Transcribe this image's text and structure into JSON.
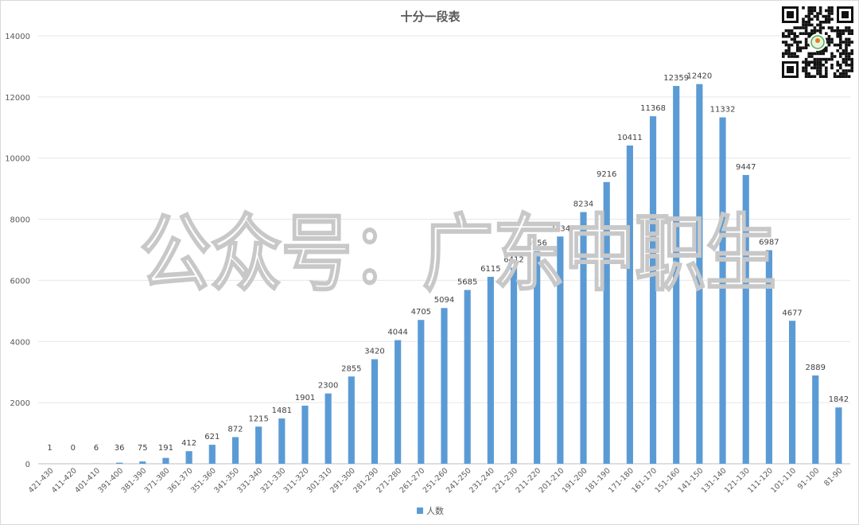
{
  "chart_data": {
    "type": "bar",
    "title": "十分一段表",
    "xlabel": "",
    "ylabel": "",
    "ylim": [
      0,
      14000
    ],
    "yticks": [
      0,
      2000,
      4000,
      6000,
      8000,
      10000,
      12000,
      14000
    ],
    "grid": true,
    "legend_position": "bottom",
    "series_color": "#5b9bd5",
    "categories": [
      "421-430",
      "411-420",
      "401-410",
      "391-400",
      "381-390",
      "371-380",
      "361-370",
      "351-360",
      "341-350",
      "331-340",
      "321-330",
      "311-320",
      "301-310",
      "291-300",
      "281-290",
      "271-280",
      "261-270",
      "251-260",
      "241-250",
      "231-240",
      "221-230",
      "211-220",
      "201-210",
      "191-200",
      "181-190",
      "171-180",
      "161-170",
      "151-160",
      "141-150",
      "131-140",
      "121-130",
      "111-120",
      "101-110",
      "91-100",
      "81-90"
    ],
    "series": [
      {
        "name": "人数",
        "values": [
          1,
          0,
          6,
          36,
          75,
          191,
          412,
          621,
          872,
          1215,
          1481,
          1901,
          2300,
          2855,
          3420,
          4044,
          4705,
          5094,
          5685,
          6115,
          6412,
          6956,
          7434,
          8234,
          9216,
          10411,
          11368,
          12359,
          12420,
          11332,
          9447,
          6987,
          4677,
          2889,
          1842
        ]
      }
    ]
  },
  "watermark": {
    "text": "公众号：广东中职生"
  },
  "qr_code": {
    "icon": "qr-code-icon"
  }
}
